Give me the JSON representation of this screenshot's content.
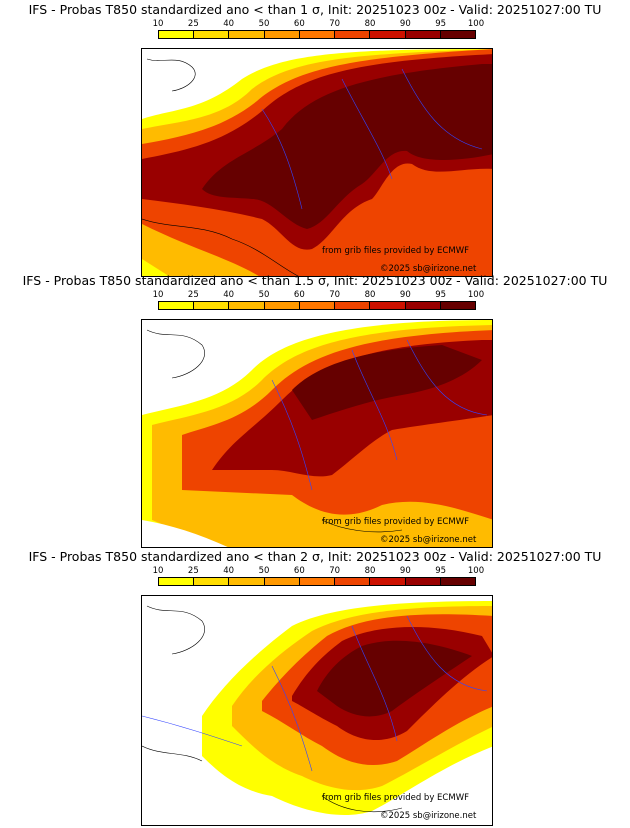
{
  "legend": {
    "ticks": [
      "10",
      "25",
      "40",
      "50",
      "60",
      "70",
      "80",
      "90",
      "95",
      "100"
    ],
    "colors": [
      "#ffff00",
      "#ffdd00",
      "#ffbb00",
      "#ff9900",
      "#ff7700",
      "#ee4400",
      "#cc1100",
      "#990000",
      "#660000"
    ]
  },
  "panels": [
    {
      "title": "IFS - Probas T850  standardized ano < than 1 σ, Init: 20251023 00z - Valid: 20251027:00 TU",
      "credit": "from grib files provided by ECMWF",
      "copyright": "©2025 sb@irizone.net"
    },
    {
      "title": "IFS - Probas T850  standardized ano < than 1.5 σ, Init: 20251023 00z - Valid: 20251027:00 TU",
      "credit": "from grib files provided by ECMWF",
      "copyright": "©2025 sb@irizone.net"
    },
    {
      "title": "IFS - Probas T850  standardized ano < than 2 σ, Init: 20251023 00z - Valid: 20251027:00 TU",
      "credit": "from grib files provided by ECMWF",
      "copyright": "©2025 sb@irizone.net"
    }
  ]
}
